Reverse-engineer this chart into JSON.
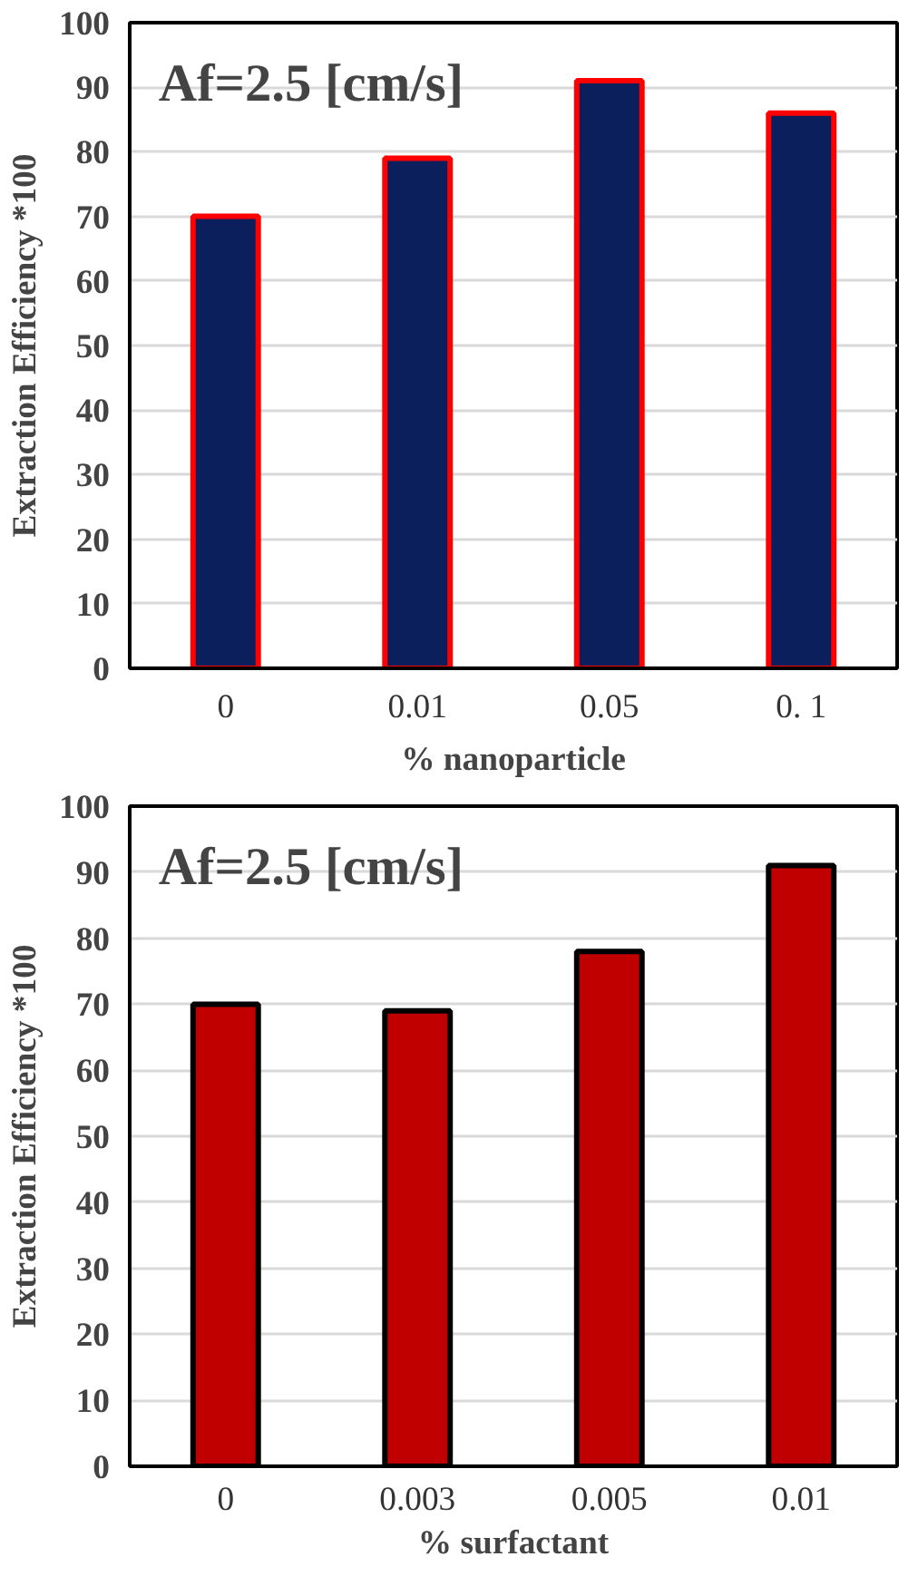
{
  "chart_data": [
    {
      "type": "bar",
      "categories": [
        "0",
        "0.01",
        "0.05",
        "0. 1"
      ],
      "values": [
        70,
        79,
        91,
        86
      ],
      "color": "#0a1f5c",
      "xlabel": "% nanoparticle",
      "ylabel": "Extraction Efficiency *100",
      "ylim": [
        0,
        100
      ],
      "yticks": [
        0,
        10,
        20,
        30,
        40,
        50,
        60,
        70,
        80,
        90,
        100
      ],
      "grid": "y",
      "annotations": [
        "Af=2.5 [cm/s]"
      ]
    },
    {
      "type": "bar",
      "categories": [
        "0",
        "0.003",
        "0.005",
        "0.01"
      ],
      "values": [
        70,
        69,
        78,
        91
      ],
      "color": "#c00000",
      "xlabel": "% surfactant",
      "ylabel": "Extraction Efficiency *100",
      "ylim": [
        0,
        100
      ],
      "yticks": [
        0,
        10,
        20,
        30,
        40,
        50,
        60,
        70,
        80,
        90,
        100
      ],
      "grid": "y",
      "annotations": [
        "Af=2.5 [cm/s]"
      ]
    }
  ]
}
